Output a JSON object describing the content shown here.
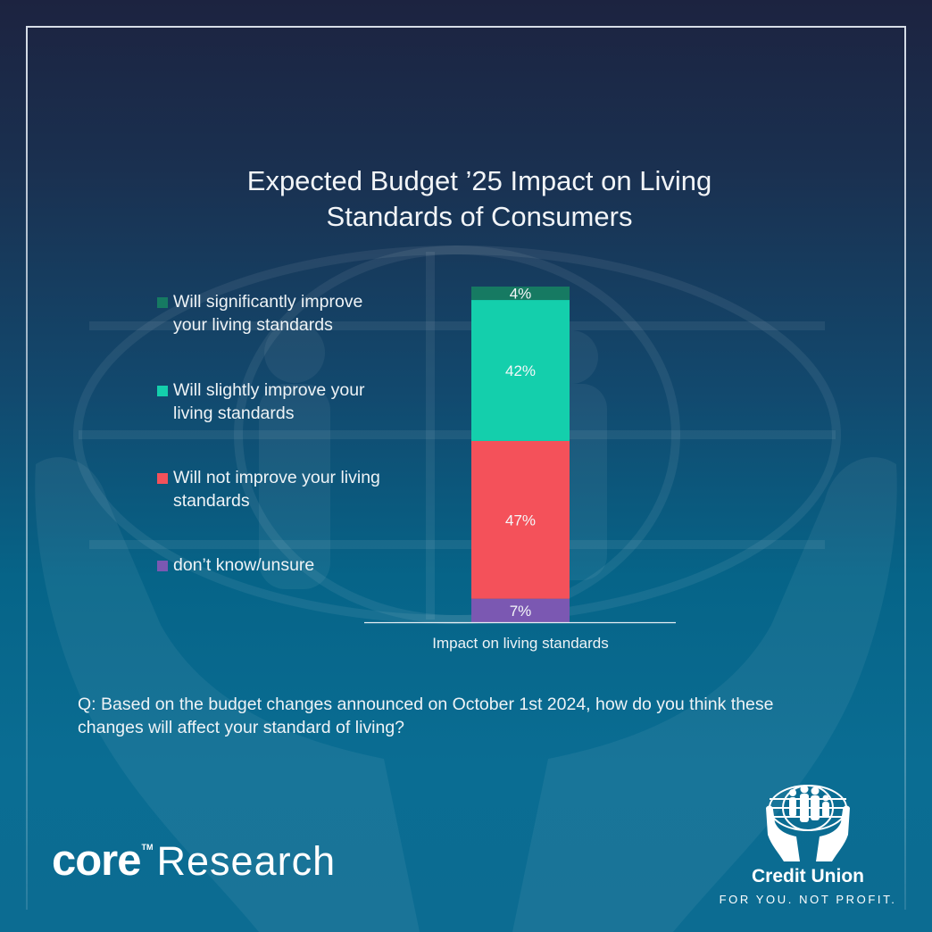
{
  "title_line1": "Expected Budget ’25 Impact on Living",
  "title_line2": "Standards of Consumers",
  "legend": [
    {
      "label": "Will significantly improve your living standards",
      "color": "#167a62"
    },
    {
      "label": "Will slightly improve your living standards",
      "color": "#14cfac"
    },
    {
      "label": "Will not improve your living standards",
      "color": "#f4515a"
    },
    {
      "label": "don’t know/unsure",
      "color": "#7b58b2"
    }
  ],
  "question": "Q: Based on the budget changes announced on October 1st 2024, how do you think these changes will affect your standard of living?",
  "branding": {
    "core_word": "core",
    "core_tm": "TM",
    "core_research": "Research",
    "cu_name": "Credit Union",
    "cu_tagline": "FOR YOU. NOT PROFIT."
  },
  "colors": {
    "axis_line": "#e8f0f5",
    "bar_label": "#f4f7f9"
  },
  "chart_data": {
    "type": "bar",
    "stacked": true,
    "orientation": "vertical",
    "title": "Expected Budget ’25 Impact on Living Standards of Consumers",
    "xlabel": "",
    "ylabel": "",
    "categories": [
      "Impact on living standards"
    ],
    "ylim": [
      0,
      100
    ],
    "grid": false,
    "legend_position": "left",
    "series": [
      {
        "name": "don’t know/unsure",
        "values": [
          7
        ],
        "label": "7%",
        "color": "#7b58b2"
      },
      {
        "name": "Will not improve your living standards",
        "values": [
          47
        ],
        "label": "47%",
        "color": "#f4515a"
      },
      {
        "name": "Will slightly improve your living standards",
        "values": [
          42
        ],
        "label": "42%",
        "color": "#14cfac"
      },
      {
        "name": "Will significantly improve your living standards",
        "values": [
          4
        ],
        "label": "4%",
        "color": "#167a62"
      }
    ]
  }
}
